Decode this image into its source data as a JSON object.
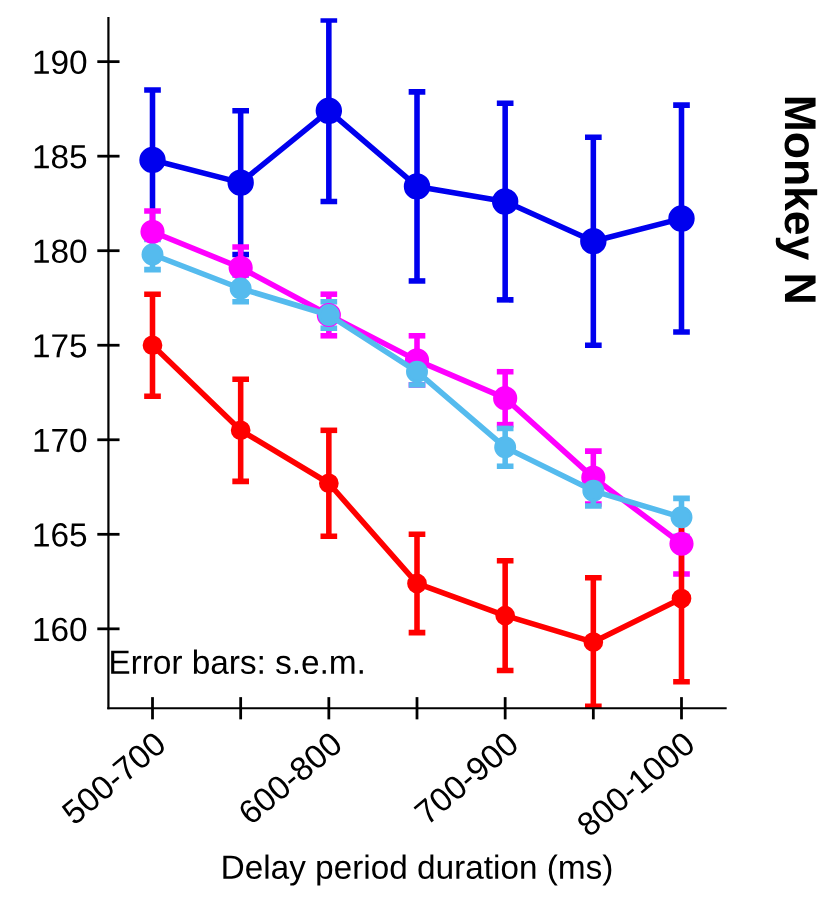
{
  "chart_data": {
    "type": "line",
    "title": "Monkey N",
    "xlabel": "Delay period duration (ms)",
    "categories": [
      "500-700",
      null,
      "600-800",
      null,
      "700-900",
      null,
      "800-1000"
    ],
    "series": [
      {
        "color": "#0000ee",
        "values": [
          184.8,
          183.6,
          187.4,
          183.4,
          182.6,
          180.5,
          181.7
        ],
        "errors": [
          3.7,
          3.8,
          4.8,
          5.0,
          5.2,
          5.5,
          6.0
        ]
      },
      {
        "color": "#ff00ff",
        "values": [
          181.0,
          179.1,
          176.6,
          174.2,
          172.2,
          168.0,
          164.5
        ],
        "errors": [
          1.1,
          1.1,
          1.1,
          1.3,
          1.4,
          1.4,
          1.6
        ]
      },
      {
        "color": "#55bbee",
        "values": [
          179.8,
          178.0,
          176.6,
          173.6,
          169.6,
          167.3,
          165.9
        ],
        "errors": [
          0.8,
          0.7,
          0.7,
          0.7,
          1.0,
          0.8,
          1.0
        ]
      },
      {
        "color": "#ff0000",
        "values": [
          175.0,
          170.5,
          167.7,
          162.4,
          160.7,
          159.3,
          161.6
        ],
        "errors": [
          2.7,
          2.7,
          2.8,
          2.6,
          2.9,
          3.4,
          4.4
        ]
      }
    ],
    "ylim": [
      155.8,
      192.3
    ],
    "yticks": [
      160,
      165,
      170,
      175,
      180,
      185,
      190
    ],
    "annotations": [
      "Error bars: s.e.m."
    ],
    "marker": "circle",
    "line_style": "solid",
    "grid": false,
    "legend": false
  }
}
